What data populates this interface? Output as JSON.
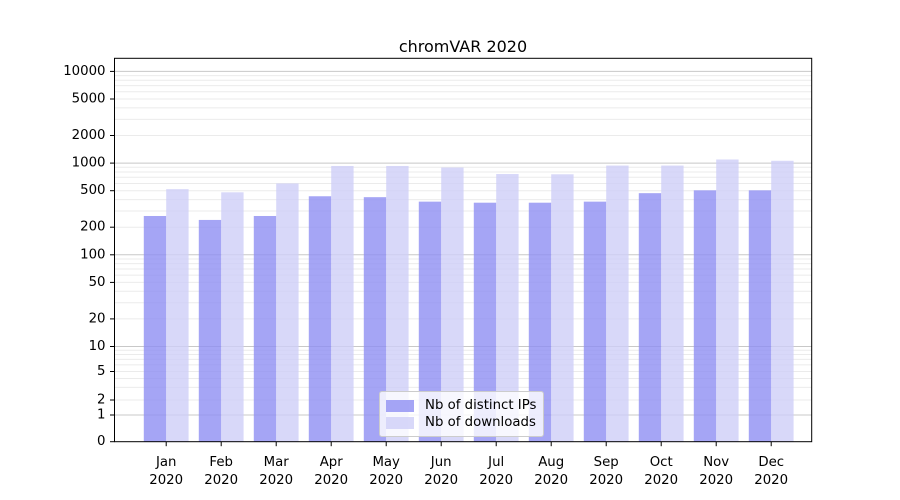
{
  "chart_data": {
    "type": "bar",
    "title": "chromVAR 2020",
    "categories": [
      "Jan 2020",
      "Feb 2020",
      "Mar 2020",
      "Apr 2020",
      "May 2020",
      "Jun 2020",
      "Jul 2020",
      "Aug 2020",
      "Sep 2020",
      "Oct 2020",
      "Nov 2020",
      "Dec 2020"
    ],
    "category_line1": [
      "Jan",
      "Feb",
      "Mar",
      "Apr",
      "May",
      "Jun",
      "Jul",
      "Aug",
      "Sep",
      "Oct",
      "Nov",
      "Dec"
    ],
    "category_line2": "2020",
    "series": [
      {
        "name": "Nb of distinct IPs",
        "color": "#8e8ef3",
        "values": [
          265,
          240,
          265,
          435,
          425,
          380,
          370,
          370,
          380,
          470,
          505,
          505
        ]
      },
      {
        "name": "Nb of downloads",
        "color": "#cecef8",
        "values": [
          520,
          480,
          600,
          930,
          930,
          895,
          760,
          755,
          940,
          940,
          1095,
          1060
        ]
      }
    ],
    "bar_opacity": 0.8,
    "xlabel": "",
    "ylabel": "",
    "y_axis": {
      "scale": "symlog",
      "tick_labels": [
        "0",
        "1",
        "2",
        "5",
        "10",
        "20",
        "50",
        "100",
        "200",
        "500",
        "1000",
        "2000",
        "5000",
        "10000"
      ],
      "tick_values": [
        0,
        1,
        2,
        5,
        10,
        20,
        50,
        100,
        200,
        500,
        1000,
        2000,
        5000,
        10000
      ],
      "major_gridlines": [
        1,
        10,
        100,
        1000,
        10000
      ],
      "minor_gridline_decades": [
        1,
        10,
        100,
        1000
      ],
      "minor_multiples": [
        2,
        3,
        4,
        5,
        6,
        7,
        8,
        9
      ],
      "ylim": [
        0,
        10000
      ]
    },
    "legend": {
      "position": "lower center",
      "entries": [
        "Nb of distinct IPs",
        "Nb of downloads"
      ]
    },
    "grid": true
  },
  "style": {
    "background": "#ffffff",
    "axis_color": "#000000",
    "text_color": "#000000",
    "major_grid_color": "#c8c8c8",
    "minor_grid_color": "#ebebeb",
    "legend_border_color": "#cccccc"
  }
}
